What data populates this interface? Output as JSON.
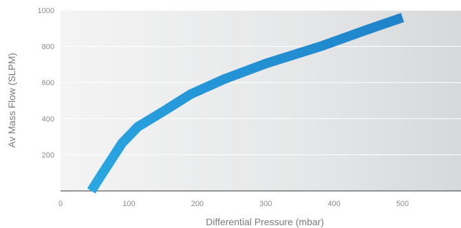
{
  "chart_data": {
    "type": "line",
    "title": "",
    "xlabel": "Differential Pressure (mbar)",
    "ylabel": "Av Mass Flow (SLPM)",
    "xlim": [
      0,
      500
    ],
    "ylim": [
      0,
      1000
    ],
    "xticks": [
      "0",
      "100",
      "200",
      "300",
      "400",
      "500"
    ],
    "yticks": [
      "200",
      "400",
      "600",
      "800",
      "1000"
    ],
    "grid": "horizontal",
    "series": [
      {
        "x": [
          45,
          60,
          90,
          113,
          150,
          190,
          240,
          300,
          380,
          450,
          500
        ],
        "y": [
          0,
          90,
          265,
          355,
          440,
          535,
          620,
          705,
          800,
          895,
          960
        ]
      }
    ],
    "colors": {
      "line_start": "#2aa8e4",
      "line_end": "#1f83c9",
      "plot_bg_light": "#f3f3f3",
      "plot_bg_dark": "#d7d9db",
      "gridline": "#ffffff",
      "baseline": "#333333"
    }
  }
}
